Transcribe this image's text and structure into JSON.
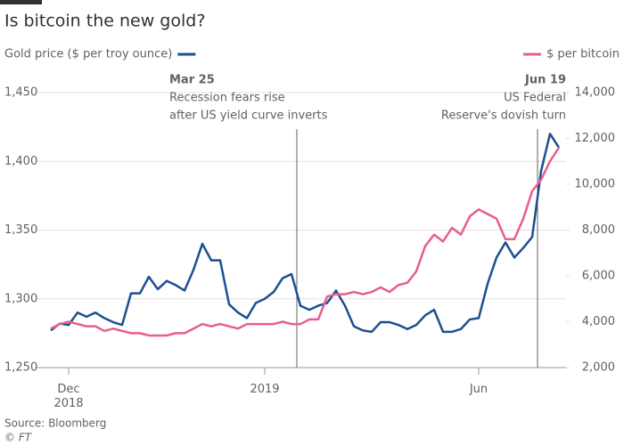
{
  "chart_data": {
    "type": "line",
    "title": "Is bitcoin the new gold?",
    "source": "Source: Bloomberg",
    "credit": "© FT",
    "categories": [
      null,
      null,
      "Dec 2018",
      null,
      null,
      null,
      null,
      null,
      null,
      null,
      null,
      null,
      null,
      null,
      null,
      null,
      null,
      null,
      null,
      null,
      null,
      null,
      null,
      null,
      "2019",
      null,
      null,
      null,
      null,
      null,
      null,
      null,
      null,
      null,
      null,
      null,
      null,
      null,
      null,
      null,
      null,
      null,
      null,
      null,
      null,
      null,
      null,
      null,
      "Jun",
      null,
      null,
      null,
      null,
      null,
      null,
      null,
      null,
      null
    ],
    "series": [
      {
        "name": "Gold price ($ per troy ounce)",
        "color": "#1d4f91",
        "axis": "y",
        "values": [
          1277,
          1282,
          1281,
          1290,
          1287,
          1290,
          1286,
          1283,
          1281,
          1304,
          1304,
          1316,
          1307,
          1313,
          1310,
          1306,
          1321,
          1340,
          1328,
          1328,
          1296,
          1290,
          1286,
          1297,
          1300,
          1305,
          1315,
          1318,
          1295,
          1292,
          1295,
          1297,
          1306,
          1295,
          1280,
          1277,
          1276,
          1283,
          1283,
          1281,
          1278,
          1281,
          1288,
          1292,
          1276,
          1276,
          1278,
          1285,
          1286,
          1311,
          1330,
          1341,
          1330,
          1337,
          1345,
          1393,
          1420,
          1410
        ]
      },
      {
        "name": "$ per bitcoin",
        "color": "#e95d8c",
        "axis": "y2",
        "values": [
          3700,
          3900,
          4000,
          3900,
          3800,
          3800,
          3600,
          3700,
          3600,
          3500,
          3500,
          3400,
          3400,
          3400,
          3500,
          3500,
          3700,
          3900,
          3800,
          3900,
          3800,
          3700,
          3900,
          3900,
          3900,
          3900,
          4000,
          3900,
          3900,
          4100,
          4100,
          5100,
          5200,
          5200,
          5300,
          5200,
          5300,
          5500,
          5300,
          5600,
          5700,
          6200,
          7300,
          7800,
          7500,
          8100,
          7800,
          8600,
          8900,
          8700,
          8500,
          7600,
          7600,
          8500,
          9700,
          10200,
          11000,
          11600
        ]
      }
    ],
    "ylim": [
      1250,
      1450
    ],
    "yticks": [
      {
        "value": 1250,
        "label": "1,250"
      },
      {
        "value": 1300,
        "label": "1,300"
      },
      {
        "value": 1350,
        "label": "1,350"
      },
      {
        "value": 1400,
        "label": "1,400"
      },
      {
        "value": 1450,
        "label": "1,450"
      }
    ],
    "y2lim": [
      2000,
      14000
    ],
    "y2ticks": [
      {
        "value": 2000,
        "label": "2,000"
      },
      {
        "value": 4000,
        "label": "4,000"
      },
      {
        "value": 6000,
        "label": "6,000"
      },
      {
        "value": 8000,
        "label": "8,000"
      },
      {
        "value": 10000,
        "label": "10,000"
      },
      {
        "value": 12000,
        "label": "12,000"
      },
      {
        "value": 14000,
        "label": "14,000"
      }
    ],
    "grid": true,
    "annotations": [
      {
        "title": "Mar 25",
        "lines": [
          "Recession fears rise",
          "after US yield curve inverts"
        ]
      },
      {
        "title": "Jun 19",
        "lines": [
          "US Federal",
          "Reserve's dovish turn"
        ]
      }
    ]
  }
}
